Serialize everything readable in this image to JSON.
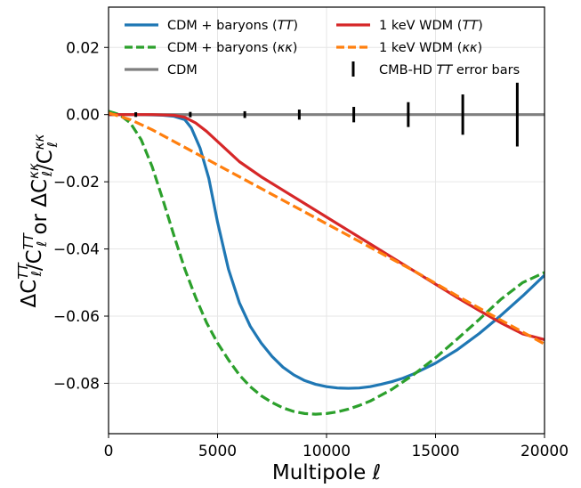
{
  "chart_data": {
    "type": "line",
    "xlabel": "Multipole ℓ",
    "ylabel_parts": [
      "ΔC",
      "TT",
      "ℓ",
      "/C",
      "TT",
      "ℓ",
      " or ΔC",
      "κκ",
      "ℓ",
      "/C",
      "κκ",
      "ℓ"
    ],
    "xlim": [
      0,
      20000
    ],
    "ylim": [
      -0.095,
      0.032
    ],
    "grid": true,
    "x_ticks": [
      0,
      5000,
      10000,
      15000,
      20000
    ],
    "x_tick_labels": [
      "0",
      "5000",
      "10000",
      "15000",
      "20000"
    ],
    "y_ticks": [
      0.02,
      0.0,
      -0.02,
      -0.04,
      -0.06,
      -0.08
    ],
    "y_tick_labels": [
      "0.02",
      "0.00",
      "−0.02",
      "−0.04",
      "−0.06",
      "−0.08"
    ],
    "legend_placement": "top",
    "series": [
      {
        "name_parts": [
          "CDM + baryons (",
          "TT",
          ")"
        ],
        "color": "#1f77b4",
        "dash": "solid",
        "x": [
          0,
          1000,
          2000,
          2500,
          3000,
          3500,
          3800,
          4200,
          4600,
          5000,
          5500,
          6000,
          6500,
          7000,
          7500,
          8000,
          8500,
          9000,
          9500,
          10000,
          10500,
          11000,
          11500,
          12000,
          12500,
          13000,
          13500,
          14000,
          15000,
          16000,
          17000,
          18000,
          19000,
          20000
        ],
        "y": [
          0,
          0,
          -0.0001,
          -0.0002,
          -0.0005,
          -0.0015,
          -0.004,
          -0.01,
          -0.019,
          -0.032,
          -0.046,
          -0.056,
          -0.063,
          -0.068,
          -0.072,
          -0.0752,
          -0.0775,
          -0.0792,
          -0.0803,
          -0.081,
          -0.0814,
          -0.0815,
          -0.0814,
          -0.081,
          -0.0803,
          -0.0795,
          -0.0785,
          -0.0772,
          -0.074,
          -0.07,
          -0.0652,
          -0.0598,
          -0.054,
          -0.0478
        ]
      },
      {
        "name_parts": [
          "CDM + baryons (",
          "κκ",
          ")"
        ],
        "color": "#2ca02c",
        "dash": "dashed",
        "x": [
          0,
          500,
          1000,
          1500,
          2000,
          2500,
          3000,
          3500,
          4000,
          4500,
          5000,
          5500,
          6000,
          6500,
          7000,
          7500,
          8000,
          8500,
          9000,
          9500,
          10000,
          10500,
          11000,
          11500,
          12000,
          13000,
          14000,
          15000,
          16000,
          17000,
          18000,
          19000,
          20000
        ],
        "y": [
          0.001,
          0,
          -0.0025,
          -0.0075,
          -0.0155,
          -0.0255,
          -0.036,
          -0.046,
          -0.0545,
          -0.062,
          -0.068,
          -0.073,
          -0.0775,
          -0.081,
          -0.0837,
          -0.0857,
          -0.0873,
          -0.0884,
          -0.089,
          -0.0892,
          -0.089,
          -0.0885,
          -0.0877,
          -0.0866,
          -0.0853,
          -0.0818,
          -0.0774,
          -0.0724,
          -0.0668,
          -0.061,
          -0.055,
          -0.05,
          -0.047
        ]
      },
      {
        "name_parts": [
          "CDM"
        ],
        "color": "#7f7f7f",
        "dash": "solid",
        "x": [
          0,
          20000
        ],
        "y": [
          0,
          0
        ]
      },
      {
        "name_parts": [
          "1 keV WDM (",
          "TT",
          ")"
        ],
        "color": "#d62728",
        "dash": "solid",
        "x": [
          0,
          2000,
          3000,
          3500,
          4000,
          4500,
          5000,
          5500,
          6000,
          7000,
          8000,
          9000,
          10000,
          11000,
          12000,
          13000,
          14000,
          15000,
          16000,
          17000,
          18000,
          19000,
          20000
        ],
        "y": [
          0,
          0,
          -0.0002,
          -0.0008,
          -0.0025,
          -0.005,
          -0.008,
          -0.011,
          -0.014,
          -0.0185,
          -0.0225,
          -0.0265,
          -0.0305,
          -0.0345,
          -0.0385,
          -0.0425,
          -0.0465,
          -0.0505,
          -0.0545,
          -0.0583,
          -0.062,
          -0.0653,
          -0.067
        ]
      },
      {
        "name_parts": [
          "1 keV WDM (",
          "κκ",
          ")"
        ],
        "color": "#ff7f0e",
        "dash": "dashed",
        "x": [
          0,
          1000,
          2000,
          3000,
          4000,
          5000,
          6000,
          8000,
          10000,
          12000,
          14000,
          16000,
          18000,
          20000
        ],
        "y": [
          0.0005,
          -0.0015,
          -0.0045,
          -0.008,
          -0.0115,
          -0.015,
          -0.0185,
          -0.0255,
          -0.0325,
          -0.0395,
          -0.0465,
          -0.054,
          -0.0612,
          -0.0683
        ]
      }
    ],
    "error_bars": {
      "name_parts": [
        "CMB-HD ",
        "TT",
        " error bars"
      ],
      "color": "#000000",
      "x": [
        1250,
        3750,
        6250,
        8750,
        11250,
        13750,
        16250,
        18750
      ],
      "half_width": [
        0.0007,
        0.0008,
        0.001,
        0.0015,
        0.0023,
        0.0037,
        0.006,
        0.0095
      ]
    }
  }
}
